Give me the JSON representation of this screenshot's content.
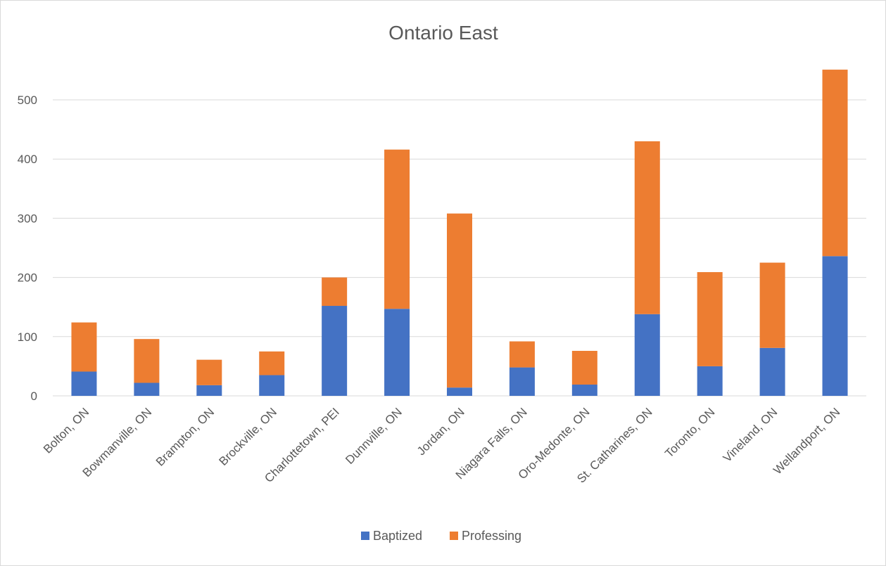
{
  "chart_data": {
    "type": "bar",
    "stacked": true,
    "title": "Ontario East",
    "xlabel": "",
    "ylabel": "",
    "ylim": [
      0,
      600
    ],
    "yticks": [
      0,
      100,
      200,
      300,
      400,
      500
    ],
    "grid": true,
    "legend": "bottom",
    "categories": [
      "Bolton, ON",
      "Bowmanville, ON",
      "Brampton, ON",
      "Brockville, ON",
      "Charlottetown, PEI",
      "Dunnville, ON",
      "Jordan, ON",
      "Niagara Falls, ON",
      "Oro-Medonte, ON",
      "St. Catharines, ON",
      "Toronto, ON",
      "Vineland, ON",
      "Wellandport, ON"
    ],
    "series": [
      {
        "name": "Baptized",
        "color": "#4472c4",
        "values": [
          41,
          22,
          18,
          35,
          152,
          147,
          14,
          48,
          19,
          138,
          50,
          81,
          236
        ]
      },
      {
        "name": "Professing",
        "color": "#ed7d31",
        "values": [
          83,
          74,
          43,
          40,
          48,
          269,
          294,
          44,
          57,
          292,
          159,
          144,
          315
        ]
      }
    ]
  }
}
